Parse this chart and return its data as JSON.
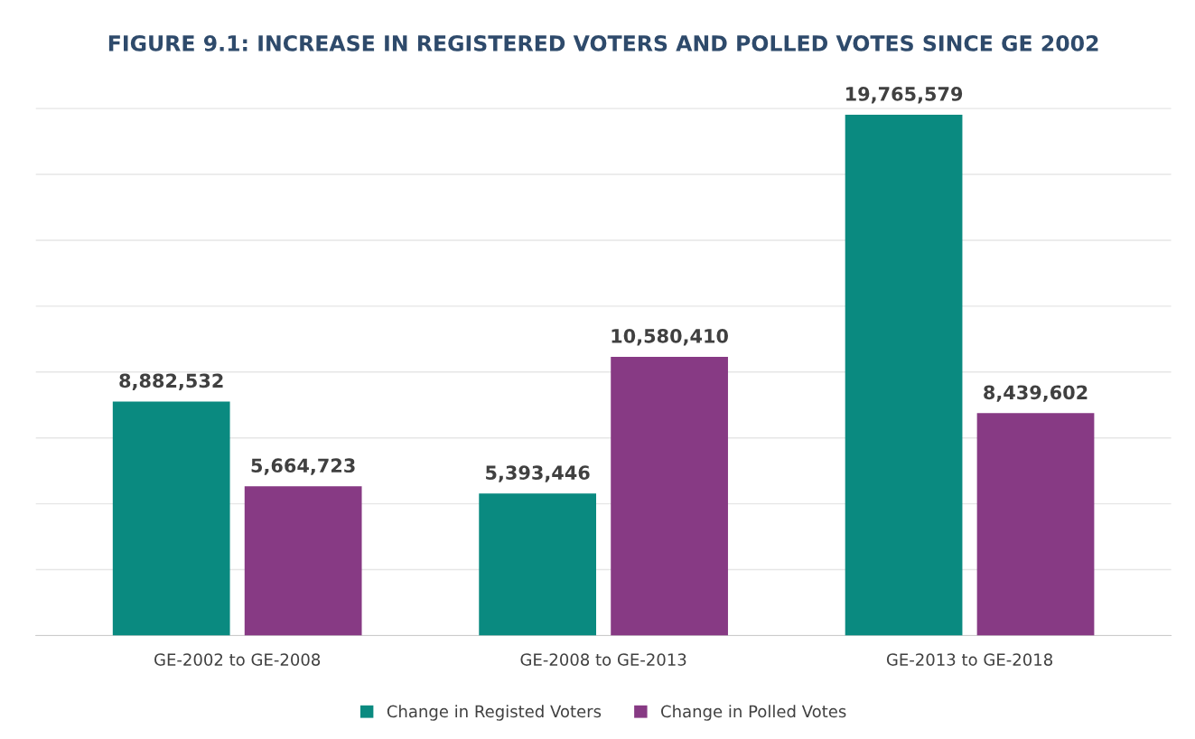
{
  "chart_data": {
    "type": "bar",
    "title": "FIGURE 9.1: INCREASE IN REGISTERED VOTERS AND POLLED VOTES SINCE GE 2002",
    "categories": [
      "GE-2002 to GE-2008",
      "GE-2008 to GE-2013",
      "GE-2013 to GE-2018"
    ],
    "series": [
      {
        "name": "Change in Registed Voters",
        "color": "#0a8a80",
        "values": [
          8882532,
          5393446,
          19765579
        ],
        "value_labels": [
          "8,882,532",
          "5,393,446",
          "19,765,579"
        ]
      },
      {
        "name": "Change in Polled Votes",
        "color": "#873a84",
        "values": [
          5664723,
          10580410,
          8439602
        ],
        "value_labels": [
          "5,664,723",
          "10,580,410",
          "8,439,602"
        ]
      }
    ],
    "grid": "y",
    "tick_labels": "x",
    "legend": "bottom"
  }
}
